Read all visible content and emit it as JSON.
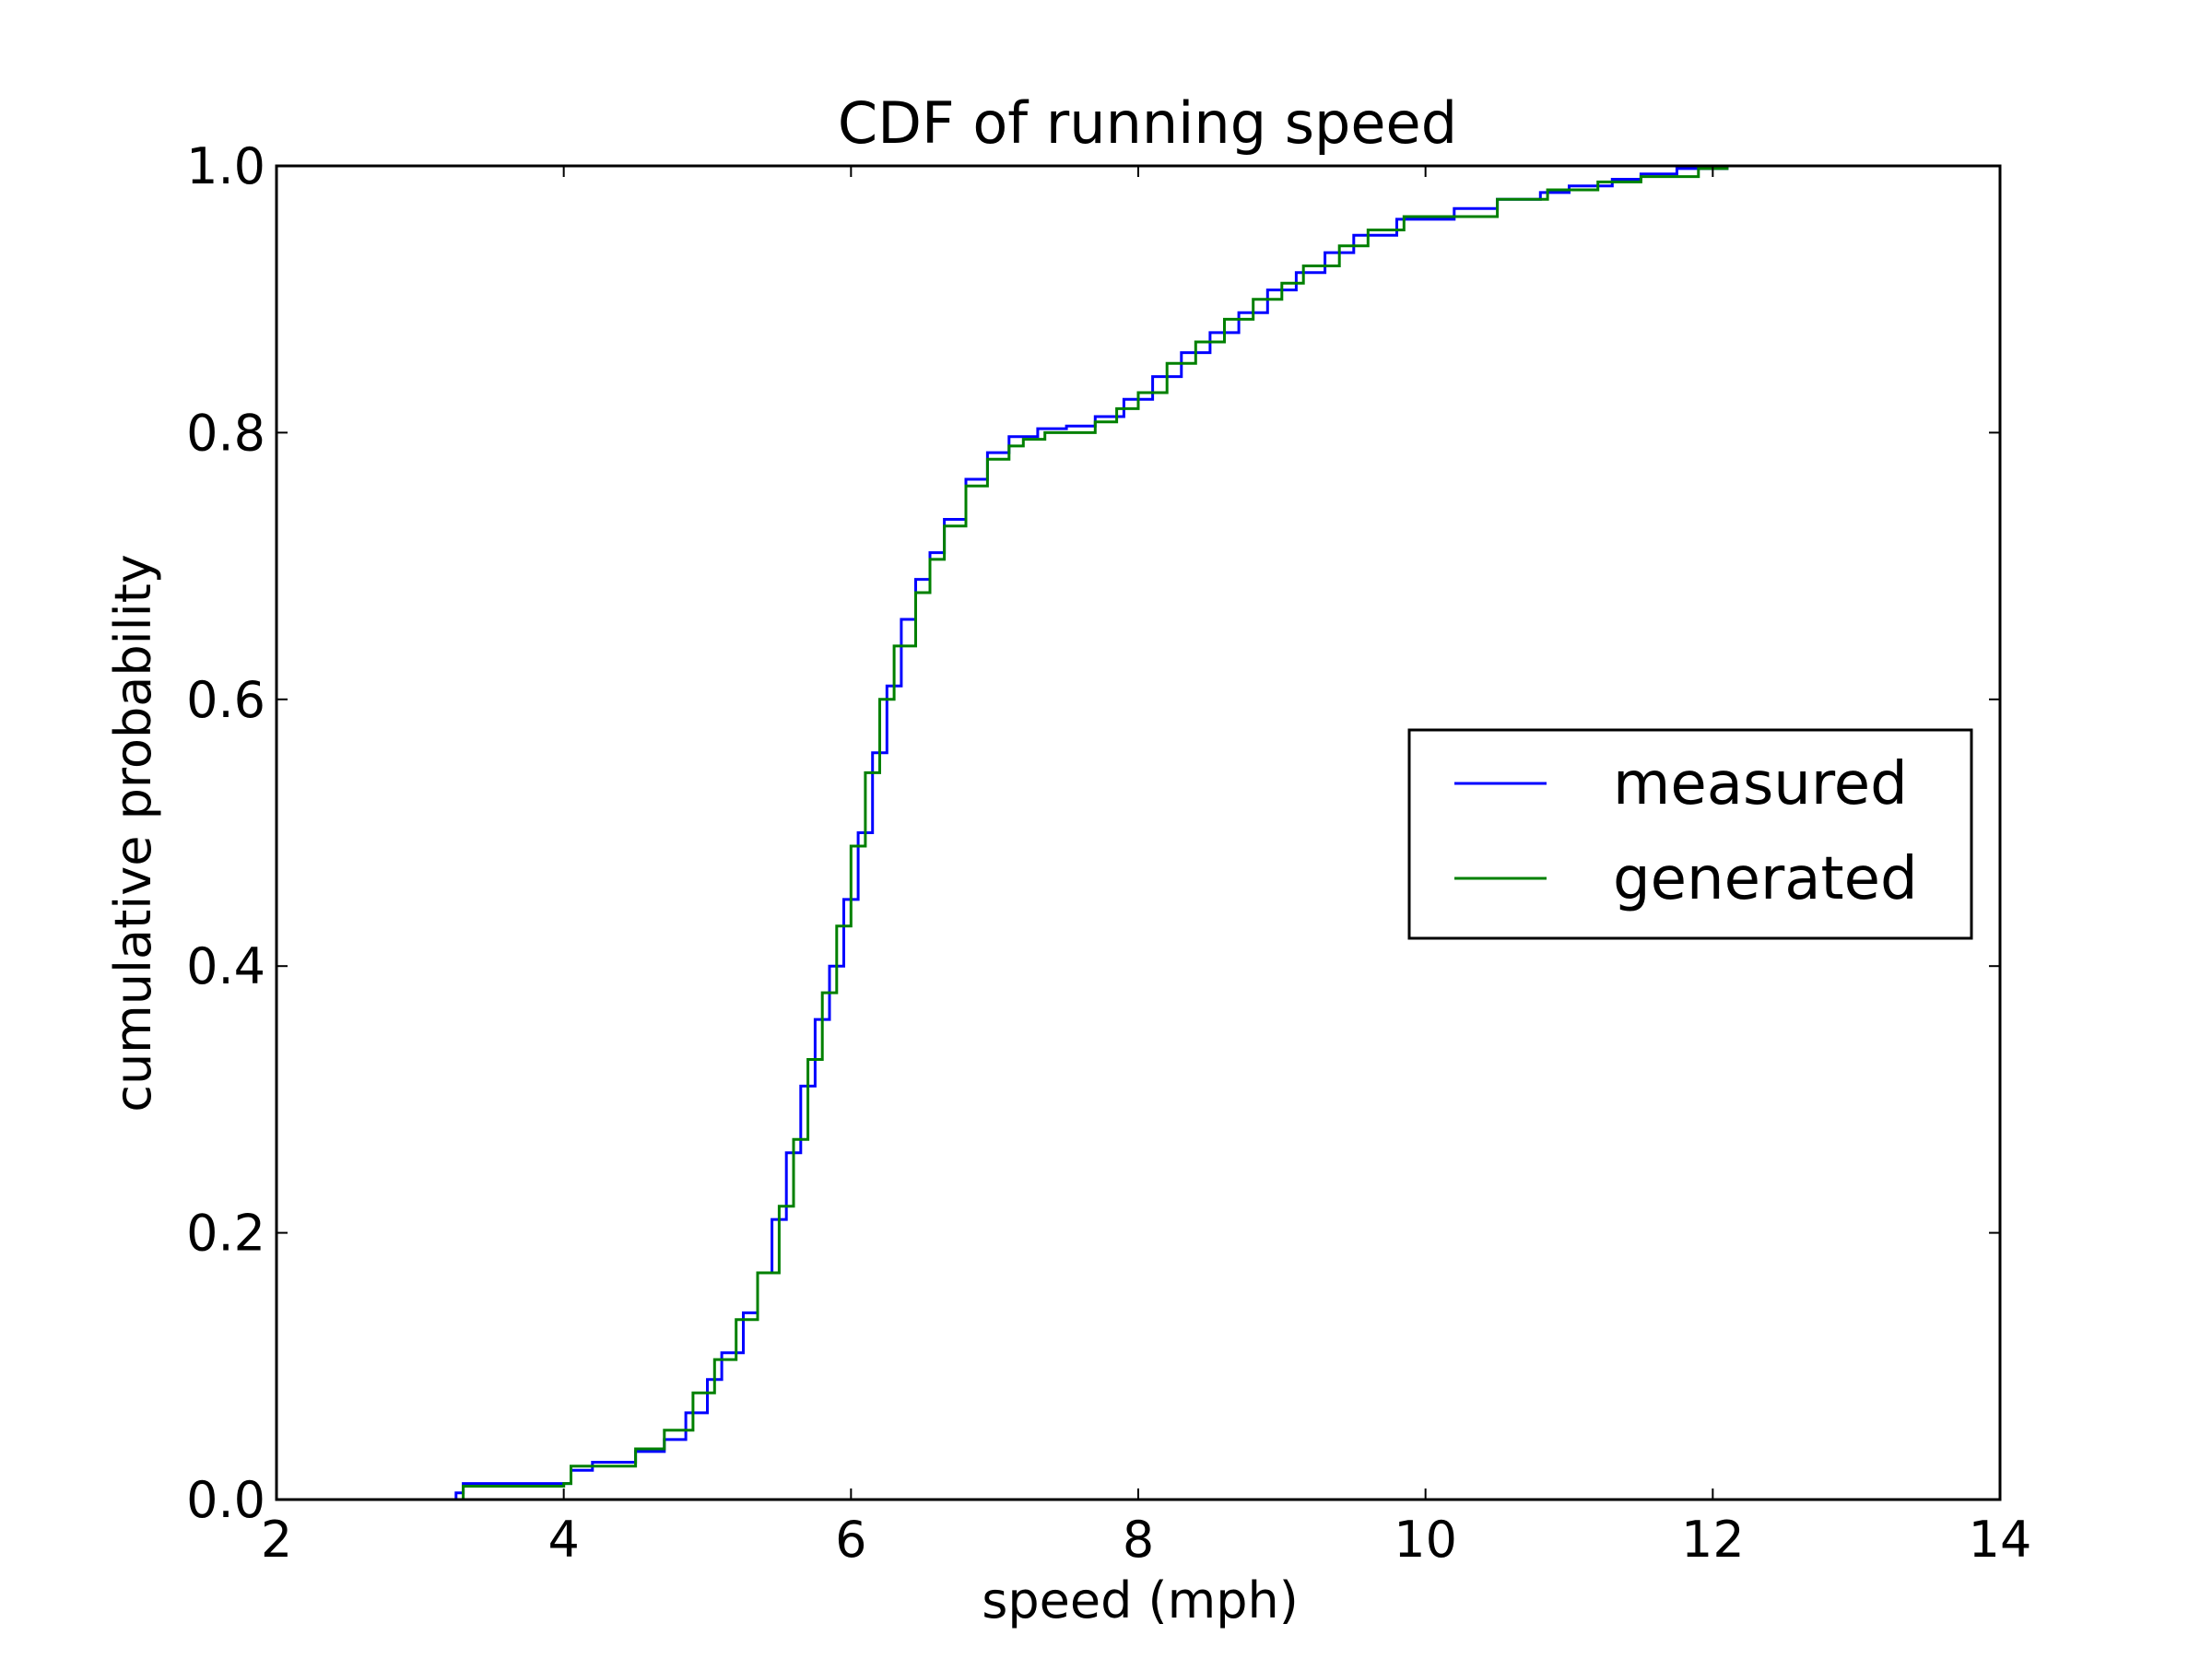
{
  "chart_data": {
    "type": "line",
    "title": "CDF of running speed",
    "xlabel": "speed (mph)",
    "ylabel": "cumulative probability",
    "xlim": [
      2,
      14
    ],
    "ylim": [
      0,
      1.0
    ],
    "xticks": [
      2,
      4,
      6,
      8,
      10,
      12,
      14
    ],
    "xtick_labels": [
      "2",
      "4",
      "6",
      "8",
      "10",
      "12",
      "14"
    ],
    "yticks": [
      0,
      0.2,
      0.4,
      0.6,
      0.8,
      1.0
    ],
    "ytick_labels": [
      "0.0",
      "0.2",
      "0.4",
      "0.6",
      "0.8",
      "1.0"
    ],
    "grid": false,
    "legend_position": "center-right",
    "series": [
      {
        "name": "measured",
        "color": "#0000ff",
        "step": true,
        "x": [
          3.05,
          3.25,
          3.3,
          4.0,
          4.05,
          4.2,
          4.5,
          4.7,
          4.85,
          5.0,
          5.1,
          5.25,
          5.35,
          5.45,
          5.55,
          5.65,
          5.75,
          5.85,
          5.95,
          6.05,
          6.15,
          6.25,
          6.35,
          6.45,
          6.55,
          6.65,
          6.8,
          6.95,
          7.1,
          7.3,
          7.5,
          7.7,
          7.9,
          8.1,
          8.3,
          8.5,
          8.7,
          8.9,
          9.1,
          9.3,
          9.5,
          9.8,
          10.2,
          10.5,
          10.8,
          11.0,
          11.3,
          11.5,
          11.75,
          12.1
        ],
        "y": [
          0.0,
          0.005,
          0.012,
          0.012,
          0.022,
          0.028,
          0.036,
          0.045,
          0.065,
          0.09,
          0.11,
          0.14,
          0.17,
          0.21,
          0.26,
          0.31,
          0.36,
          0.4,
          0.45,
          0.5,
          0.56,
          0.61,
          0.66,
          0.69,
          0.71,
          0.735,
          0.765,
          0.785,
          0.797,
          0.803,
          0.805,
          0.812,
          0.825,
          0.842,
          0.86,
          0.875,
          0.89,
          0.907,
          0.92,
          0.935,
          0.948,
          0.96,
          0.968,
          0.975,
          0.98,
          0.985,
          0.99,
          0.994,
          0.998,
          1.0
        ]
      },
      {
        "name": "generated",
        "color": "#008000",
        "step": true,
        "x": [
          3.05,
          3.3,
          4.0,
          4.05,
          4.5,
          4.7,
          4.9,
          5.05,
          5.2,
          5.35,
          5.5,
          5.6,
          5.7,
          5.8,
          5.9,
          6.0,
          6.1,
          6.2,
          6.3,
          6.45,
          6.55,
          6.65,
          6.8,
          6.95,
          7.1,
          7.2,
          7.35,
          7.7,
          7.85,
          8.0,
          8.2,
          8.4,
          8.6,
          8.8,
          9.0,
          9.15,
          9.4,
          9.6,
          9.85,
          10.5,
          10.85,
          11.2,
          11.5,
          11.9,
          12.1
        ],
        "y": [
          0.0,
          0.01,
          0.012,
          0.025,
          0.038,
          0.052,
          0.08,
          0.105,
          0.135,
          0.17,
          0.22,
          0.27,
          0.33,
          0.38,
          0.43,
          0.49,
          0.545,
          0.6,
          0.64,
          0.68,
          0.705,
          0.73,
          0.76,
          0.78,
          0.79,
          0.795,
          0.8,
          0.808,
          0.818,
          0.83,
          0.852,
          0.868,
          0.885,
          0.9,
          0.912,
          0.925,
          0.94,
          0.952,
          0.962,
          0.975,
          0.982,
          0.988,
          0.992,
          0.998,
          1.0
        ]
      }
    ]
  }
}
